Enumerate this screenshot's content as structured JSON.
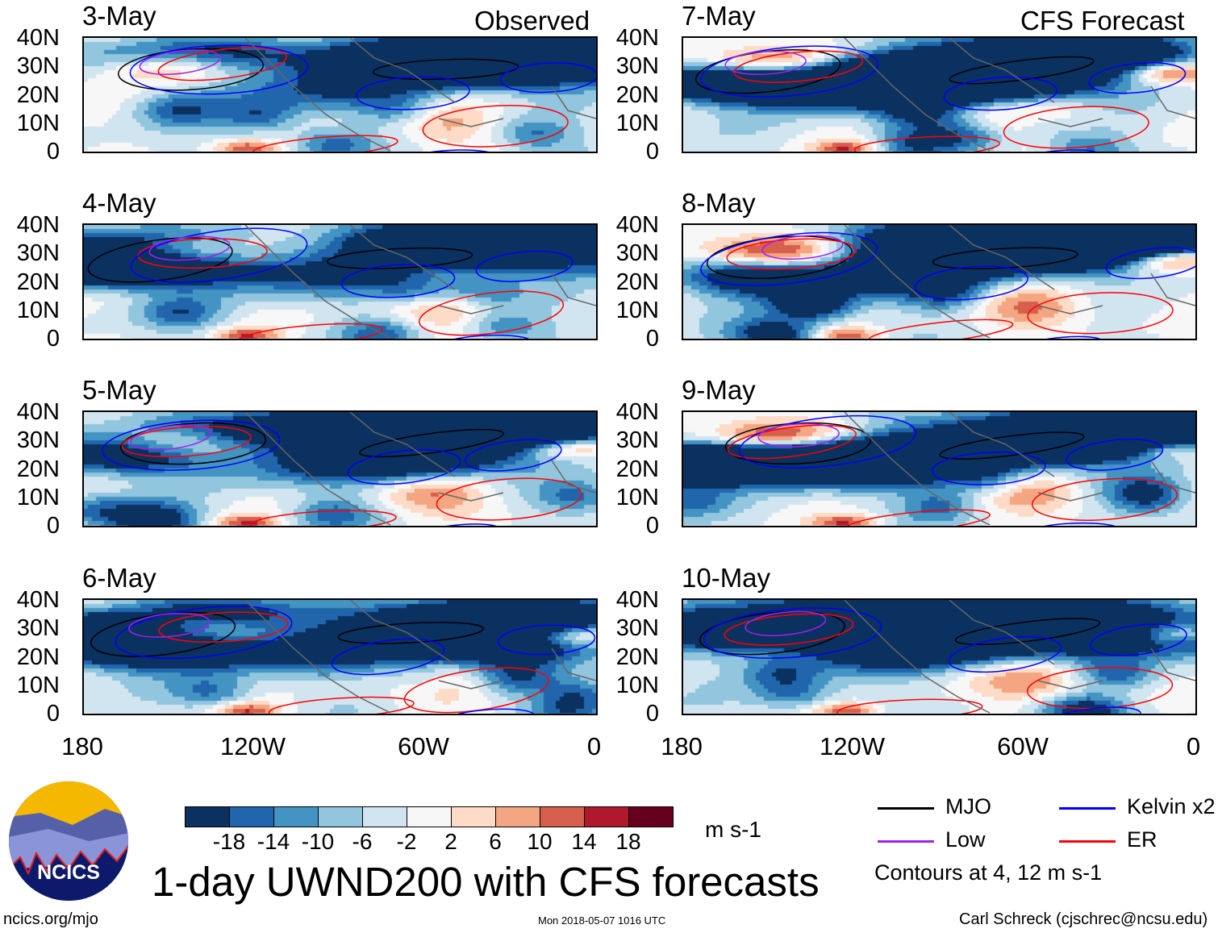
{
  "headers": {
    "left": "Observed",
    "right": "CFS Forecast"
  },
  "panels": [
    {
      "date": "3-May",
      "column": "observed"
    },
    {
      "date": "4-May",
      "column": "observed"
    },
    {
      "date": "5-May",
      "column": "observed"
    },
    {
      "date": "6-May",
      "column": "observed"
    },
    {
      "date": "7-May",
      "column": "forecast"
    },
    {
      "date": "8-May",
      "column": "forecast"
    },
    {
      "date": "9-May",
      "column": "forecast"
    },
    {
      "date": "10-May",
      "column": "forecast"
    }
  ],
  "lat_labels": [
    "40N",
    "30N",
    "20N",
    "10N",
    "0"
  ],
  "lon_labels": [
    "180",
    "120W",
    "60W",
    "0"
  ],
  "colorbar": {
    "colors": [
      "#0a3160",
      "#2166ac",
      "#4393c3",
      "#92c5de",
      "#d1e5f0",
      "#f7f7f7",
      "#fddbc7",
      "#f4a582",
      "#d6604d",
      "#b2182b",
      "#67001f"
    ],
    "labels": [
      "-18",
      "-14",
      "-10",
      "-6",
      "-2",
      "2",
      "6",
      "10",
      "14",
      "18"
    ],
    "units": "m s-1"
  },
  "legend": {
    "items": [
      {
        "label": "MJO",
        "color": "#000000"
      },
      {
        "label": "Kelvin x2",
        "color": "#0000ff"
      },
      {
        "label": "Low",
        "color": "#a020f0"
      },
      {
        "label": "ER",
        "color": "#ff0000"
      }
    ],
    "note": "Contours at 4, 12 m s-1"
  },
  "title": "1-day UWND200 with CFS forecasts",
  "logo_text": "NCICS",
  "footer": {
    "left": "ncics.org/mjo",
    "center": "Mon 2018-05-07 1016 UTC",
    "right": "Carl Schreck (cjschrec@ncsu.edu)"
  }
}
